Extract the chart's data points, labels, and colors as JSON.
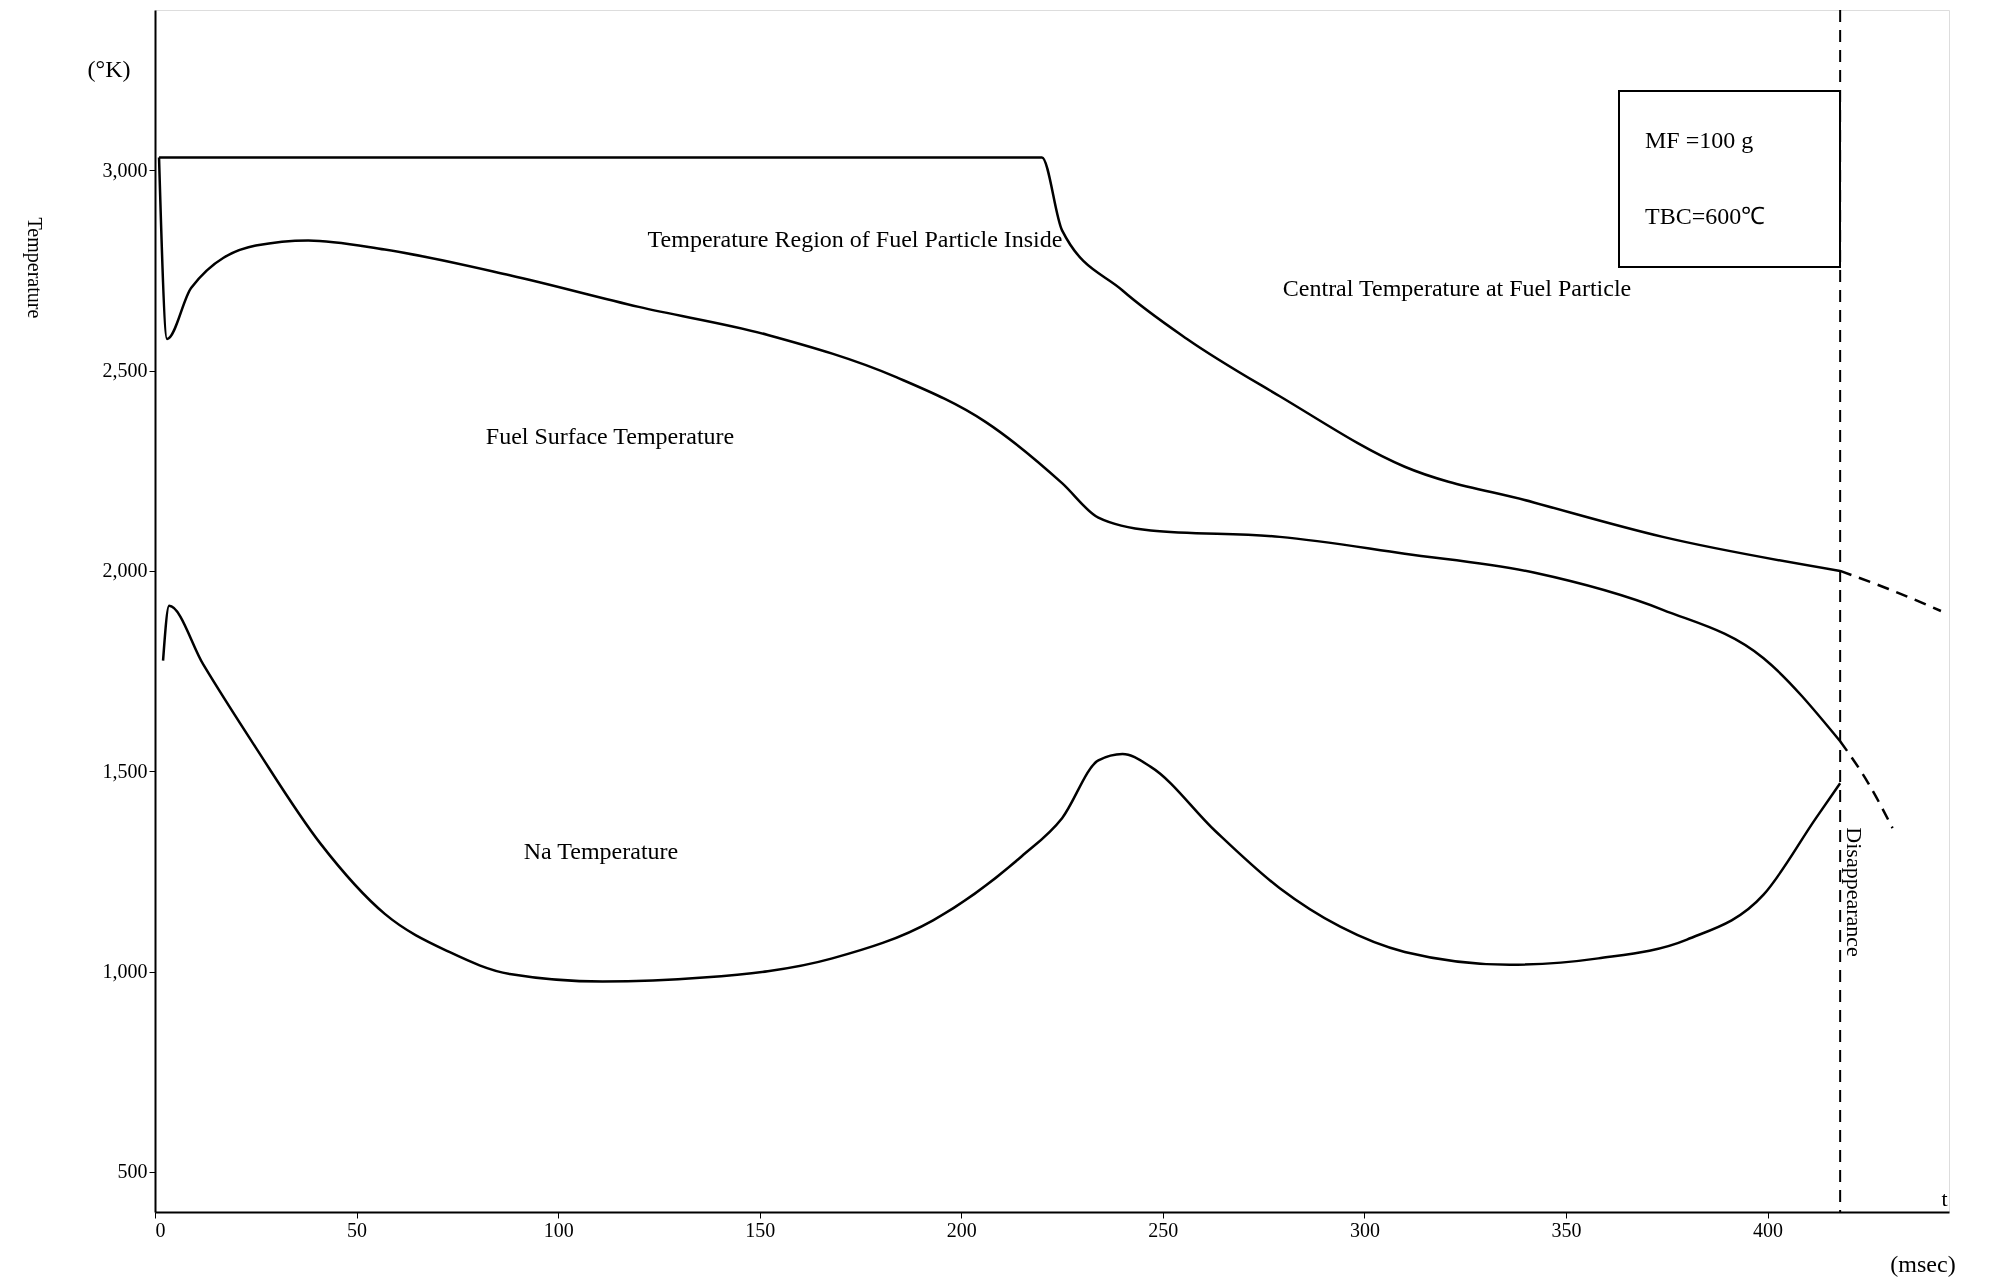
{
  "chart_data": {
    "type": "line",
    "xlabel": "t",
    "ylabel": "Temperature",
    "xlim": [
      0,
      445
    ],
    "ylim": [
      400,
      3400
    ],
    "xticks": [
      0,
      50,
      100,
      150,
      200,
      250,
      300,
      350,
      400
    ],
    "yticks": [
      500,
      {
        "value": 1000,
        "label": "1,000"
      },
      {
        "value": 1500,
        "label": "1,500"
      },
      {
        "value": 2000,
        "label": "2,000"
      },
      {
        "value": 2500,
        "label": "2,500"
      },
      {
        "value": 3000,
        "label": "3,000"
      }
    ],
    "grid": false,
    "marker": "none",
    "series": [
      {
        "color": "#000000",
        "line_style": "solid",
        "x": [
          1,
          2,
          50,
          100,
          150,
          200,
          220,
          225,
          240,
          256,
          279,
          310,
          342,
          374,
          418
        ],
        "values": [
          3032,
          3032,
          3032,
          3032,
          3032,
          3032,
          3032,
          2850,
          2700,
          2579,
          2436,
          2260,
          2171,
          2085,
          2000
        ]
      },
      {
        "color": "#000000",
        "line_style": "dashed",
        "x": [
          418,
          430,
          443
        ],
        "values": [
          2000,
          1955,
          1900
        ]
      },
      {
        "color": "#000000",
        "line_style": "solid",
        "x": [
          1,
          3,
          9,
          25,
          38,
          57,
          88,
          120,
          152,
          184,
          206,
          225,
          234,
          247,
          279,
          310,
          342,
          374,
          399,
          418
        ],
        "values": [
          3032,
          2579,
          2707,
          2812,
          2825,
          2802,
          2738,
          2659,
          2589,
          2483,
          2372,
          2219,
          2133,
          2101,
          2085,
          2043,
          1996,
          1903,
          1782,
          1575
        ]
      },
      {
        "color": "#000000",
        "line_style": "dashed",
        "x": [
          418,
          425,
          431
        ],
        "values": [
          1575,
          1470,
          1358
        ]
      },
      {
        "color": "#000000",
        "line_style": "solid",
        "x": [
          2,
          3.5,
          12,
          25,
          41,
          57,
          73,
          88,
          111,
          136,
          168,
          193,
          215,
          225,
          234,
          240,
          247,
          263,
          279,
          294,
          310,
          336,
          358,
          380,
          399,
          412,
          418
        ],
        "values": [
          1776,
          1913,
          1766,
          1559,
          1320,
          1144,
          1049,
          994,
          975,
          985,
          1033,
          1128,
          1288,
          1383,
          1527,
          1543,
          1511,
          1351,
          1208,
          1112,
          1049,
          1017,
          1033,
          1080,
          1192,
          1383,
          1470
        ]
      }
    ],
    "ref_lines": [
      {
        "axis": "x",
        "value": 418,
        "label": "Disappearance",
        "line_style": "dashed",
        "color": "#000000"
      }
    ],
    "annotations": [
      "(°K)",
      "(msec)",
      "Temperature Region of Fuel Particle Inside",
      "Fuel Surface Temperature",
      "Central Temperature at Fuel Particle",
      "Na Temperature",
      "MF =100 g",
      "TBC=600℃"
    ]
  }
}
